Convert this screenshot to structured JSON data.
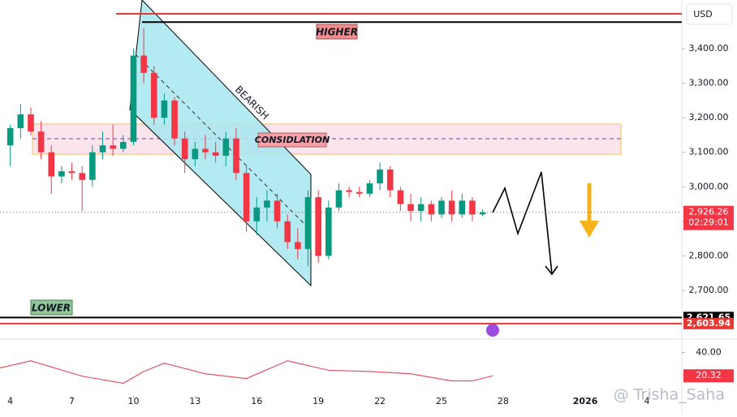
{
  "chart_data": {
    "type": "candlestick",
    "currency": "USD",
    "x": [
      0,
      0.5,
      1,
      1.5,
      2,
      2.5,
      3,
      3.5,
      4,
      4.5,
      5,
      5.5,
      6,
      6.5,
      7,
      7.5,
      8,
      8.5,
      9,
      9.5,
      10,
      10.5,
      11,
      11.5,
      12,
      12.5,
      13,
      13.5,
      14,
      14.5,
      15,
      15.5,
      16,
      16.5,
      17,
      17.5,
      18,
      18.5,
      19,
      19.5,
      20,
      20.5,
      21,
      21.5,
      22,
      22.5,
      23
    ],
    "open": [
      3120,
      3170,
      3210,
      3160,
      3100,
      3030,
      3045,
      3040,
      3020,
      3100,
      3120,
      3110,
      3130,
      3380,
      3330,
      3200,
      3250,
      3140,
      3080,
      3110,
      3100,
      3090,
      3140,
      3040,
      2900,
      2940,
      2960,
      2900,
      2840,
      2820,
      2970,
      2800,
      2940,
      2990,
      2985,
      2980,
      3010,
      3050,
      2990,
      2950,
      2930,
      2950,
      2920,
      2960,
      2920,
      2960,
      2920
    ],
    "high": [
      3180,
      3240,
      3230,
      3190,
      3120,
      3060,
      3070,
      3060,
      3120,
      3160,
      3180,
      3150,
      3400,
      3460,
      3350,
      3270,
      3260,
      3160,
      3130,
      3150,
      3130,
      3160,
      3170,
      3060,
      2970,
      2990,
      2980,
      2920,
      2880,
      2990,
      2990,
      2960,
      3010,
      3000,
      3000,
      3020,
      3070,
      3060,
      3000,
      2980,
      2970,
      2960,
      2970,
      2990,
      2980,
      2970,
      2935
    ],
    "low": [
      3060,
      3140,
      3150,
      3080,
      2980,
      3010,
      3020,
      2930,
      3000,
      3080,
      3090,
      3100,
      3120,
      3300,
      3180,
      3180,
      3120,
      3040,
      3060,
      3080,
      3070,
      3060,
      3020,
      2870,
      2860,
      2900,
      2880,
      2820,
      2790,
      2770,
      2780,
      2790,
      2930,
      2970,
      2970,
      2970,
      2990,
      2970,
      2930,
      2900,
      2900,
      2900,
      2910,
      2900,
      2910,
      2900,
      2915
    ],
    "close": [
      3170,
      3210,
      3160,
      3100,
      3030,
      3045,
      3040,
      3020,
      3100,
      3120,
      3110,
      3130,
      3380,
      3330,
      3200,
      3250,
      3140,
      3080,
      3110,
      3100,
      3090,
      3140,
      3040,
      2900,
      2940,
      2960,
      2900,
      2840,
      2820,
      2970,
      2800,
      2940,
      2990,
      2985,
      2980,
      3010,
      3050,
      2990,
      2950,
      2930,
      2950,
      2920,
      2960,
      2920,
      2960,
      2920,
      2926
    ],
    "up_color": "#089981",
    "down_color": "#f23645",
    "xlim": [
      -0.5,
      32.7
    ],
    "xticks": [
      {
        "value": 0,
        "label": "4"
      },
      {
        "value": 3,
        "label": "7"
      },
      {
        "value": 6,
        "label": "10"
      },
      {
        "value": 9,
        "label": "13"
      },
      {
        "value": 12,
        "label": "16"
      },
      {
        "value": 15,
        "label": "19"
      },
      {
        "value": 18,
        "label": "22"
      },
      {
        "value": 21,
        "label": "25"
      },
      {
        "value": 24,
        "label": "28"
      },
      {
        "value": 28,
        "label": "2026"
      },
      {
        "value": 31,
        "label": "4"
      }
    ],
    "ylim": [
      2566,
      3541
    ],
    "yticks": [
      {
        "value": 2700,
        "label": "2,700.00"
      },
      {
        "value": 2800,
        "label": "2,800.00"
      },
      {
        "value": 2900,
        "label": "2,900.00"
      },
      {
        "value": 3000,
        "label": "3,000.00"
      },
      {
        "value": 3100,
        "label": "3,100.00"
      },
      {
        "value": 3200,
        "label": "3,200.00"
      },
      {
        "value": 3300,
        "label": "3,300.00"
      },
      {
        "value": 3400,
        "label": "3,400.00"
      }
    ],
    "lines": [
      {
        "value": 3501,
        "color": "#e53935"
      },
      {
        "value": 3477,
        "color": "#000000"
      }
    ],
    "levels": [
      {
        "value": 2621.65,
        "label": "2,621.65",
        "color": "#000000"
      },
      {
        "value": 2603.94,
        "label": "2,603.94",
        "color": "#e53935"
      }
    ],
    "last_price": {
      "value": 2926.26,
      "label": "2,926.26",
      "countdown": "02:29:01",
      "color": "#f23645"
    },
    "annotations": {
      "higher": "HIGHER",
      "lower": "LOWER",
      "bearish": "BEARISH",
      "consolidation": "CONSIDLATION"
    },
    "indicator": {
      "x": [
        -0.5,
        1,
        3.5,
        5.5,
        6.5,
        7.5,
        9.5,
        11.5,
        13.5,
        15.5,
        17.5,
        19.5,
        21.5,
        22.5,
        23.5
      ],
      "values": [
        27,
        33,
        20,
        14,
        24,
        31,
        22,
        18,
        33,
        25,
        24,
        22,
        16,
        16,
        20.32
      ],
      "value_label": "20.32",
      "color": "#e05565",
      "ylim": [
        4,
        50
      ],
      "yticks": [
        {
          "value": 40,
          "label": "40.00"
        }
      ]
    },
    "watermark": "@ Trisha_Saha"
  }
}
